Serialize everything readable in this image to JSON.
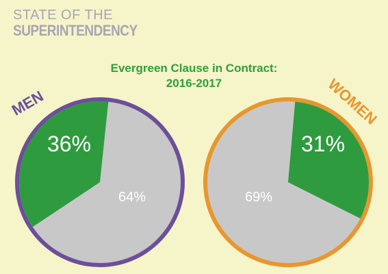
{
  "brand": {
    "line1": "STATE OF THE",
    "line2": "SUPERINTENDENCY"
  },
  "title": {
    "line1": "Evergreen Clause in Contract:",
    "line2": "2016-2017"
  },
  "colors": {
    "background": "#f6f4c9",
    "yes_slice": "#2e9b3f",
    "no_slice": "#c8c8c8",
    "men_ring": "#6c4f9a",
    "women_ring": "#e8962e",
    "title": "#2f9f3a"
  },
  "chart_data": [
    {
      "type": "pie",
      "label": "MEN",
      "values": [
        36,
        64
      ],
      "value_labels": [
        "36%",
        "64%"
      ],
      "colors": [
        "#2e9b3f",
        "#c8c8c8"
      ]
    },
    {
      "type": "pie",
      "label": "WOMEN",
      "values": [
        31,
        69
      ],
      "value_labels": [
        "31%",
        "69%"
      ],
      "colors": [
        "#2e9b3f",
        "#c8c8c8"
      ]
    }
  ]
}
